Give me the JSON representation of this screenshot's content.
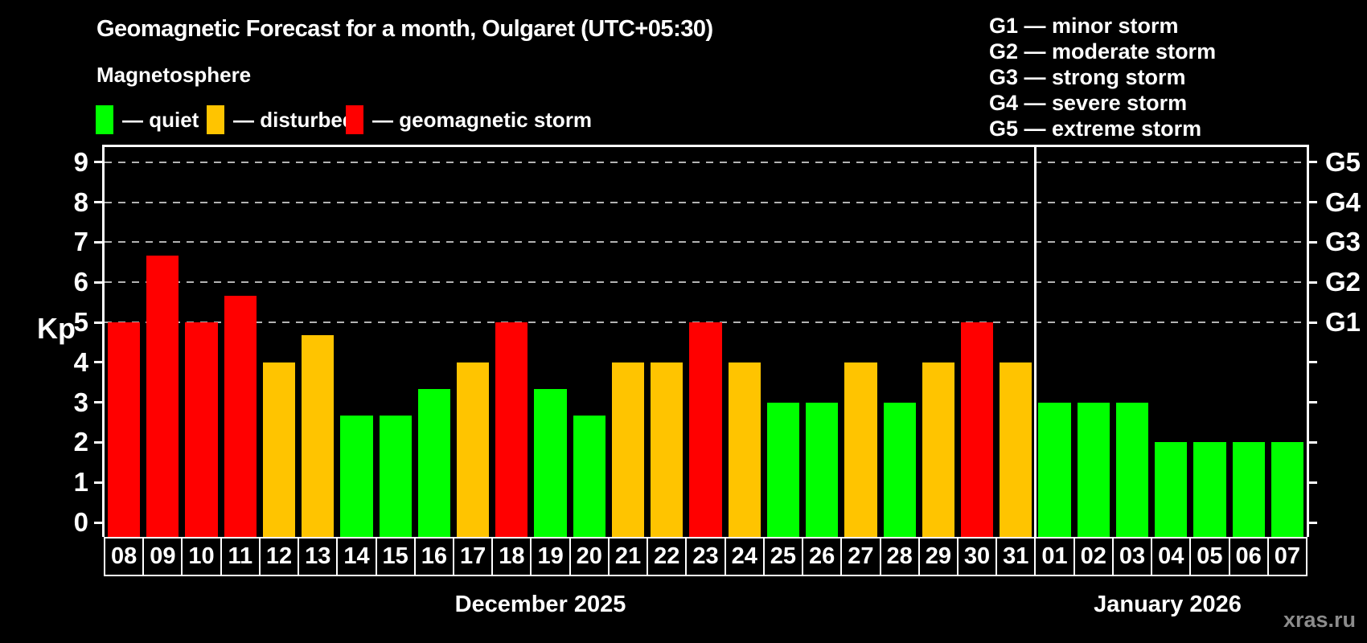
{
  "title": "Geomagnetic Forecast for a month, Oulgaret (UTC+05:30)",
  "subtitle": "Magnetosphere",
  "bar_legend": [
    {
      "status": "quiet",
      "label": "— quiet"
    },
    {
      "status": "disturbed",
      "label": "— disturbed"
    },
    {
      "status": "storm",
      "label": "— geomagnetic storm"
    }
  ],
  "storm_scale_legend": [
    "G1 — minor storm",
    "G2 — moderate storm",
    "G3 — strong storm",
    "G4 — severe storm",
    "G5 — extreme storm"
  ],
  "watermark": "xras.ru",
  "colors": {
    "quiet": "#00ff00",
    "disturbed": "#ffc400",
    "storm": "#ff0000",
    "background": "#000000",
    "axis": "#ffffff",
    "gridline": "#b3b3b3",
    "watermark": "#8c8c8c"
  },
  "chart_data": {
    "type": "bar",
    "title": "Geomagnetic Forecast for a month, Oulgaret (UTC+05:30)",
    "ylabel": "Kp",
    "ylim": [
      0,
      9
    ],
    "y_ticks": [
      0,
      1,
      2,
      3,
      4,
      5,
      6,
      7,
      8,
      9
    ],
    "gridlines_at": [
      5,
      6,
      7,
      8,
      9
    ],
    "grid": "dashed-horizontal",
    "legend_position": "top",
    "right_axis_labels": [
      {
        "value": 5,
        "label": "G1"
      },
      {
        "value": 6,
        "label": "G2"
      },
      {
        "value": 7,
        "label": "G3"
      },
      {
        "value": 8,
        "label": "G4"
      },
      {
        "value": 9,
        "label": "G5"
      }
    ],
    "months": [
      {
        "label": "December 2025",
        "start_index": 0,
        "count": 24
      },
      {
        "label": "January 2026",
        "start_index": 24,
        "count": 7
      }
    ],
    "categories": [
      "08",
      "09",
      "10",
      "11",
      "12",
      "13",
      "14",
      "15",
      "16",
      "17",
      "18",
      "19",
      "20",
      "21",
      "22",
      "23",
      "24",
      "25",
      "26",
      "27",
      "28",
      "29",
      "30",
      "31",
      "01",
      "02",
      "03",
      "04",
      "05",
      "06",
      "07"
    ],
    "values": [
      5,
      6.67,
      5,
      5.67,
      4,
      4.67,
      2.67,
      2.67,
      3.33,
      4,
      5,
      3.33,
      2.67,
      4,
      4,
      5,
      4,
      3,
      3,
      4,
      3,
      4,
      5,
      4,
      3,
      3,
      3,
      2,
      2,
      2,
      2
    ],
    "statuses": [
      "storm",
      "storm",
      "storm",
      "storm",
      "disturbed",
      "disturbed",
      "quiet",
      "quiet",
      "quiet",
      "disturbed",
      "storm",
      "quiet",
      "quiet",
      "disturbed",
      "disturbed",
      "storm",
      "disturbed",
      "quiet",
      "quiet",
      "disturbed",
      "quiet",
      "disturbed",
      "storm",
      "disturbed",
      "quiet",
      "quiet",
      "quiet",
      "quiet",
      "quiet",
      "quiet",
      "quiet"
    ]
  }
}
